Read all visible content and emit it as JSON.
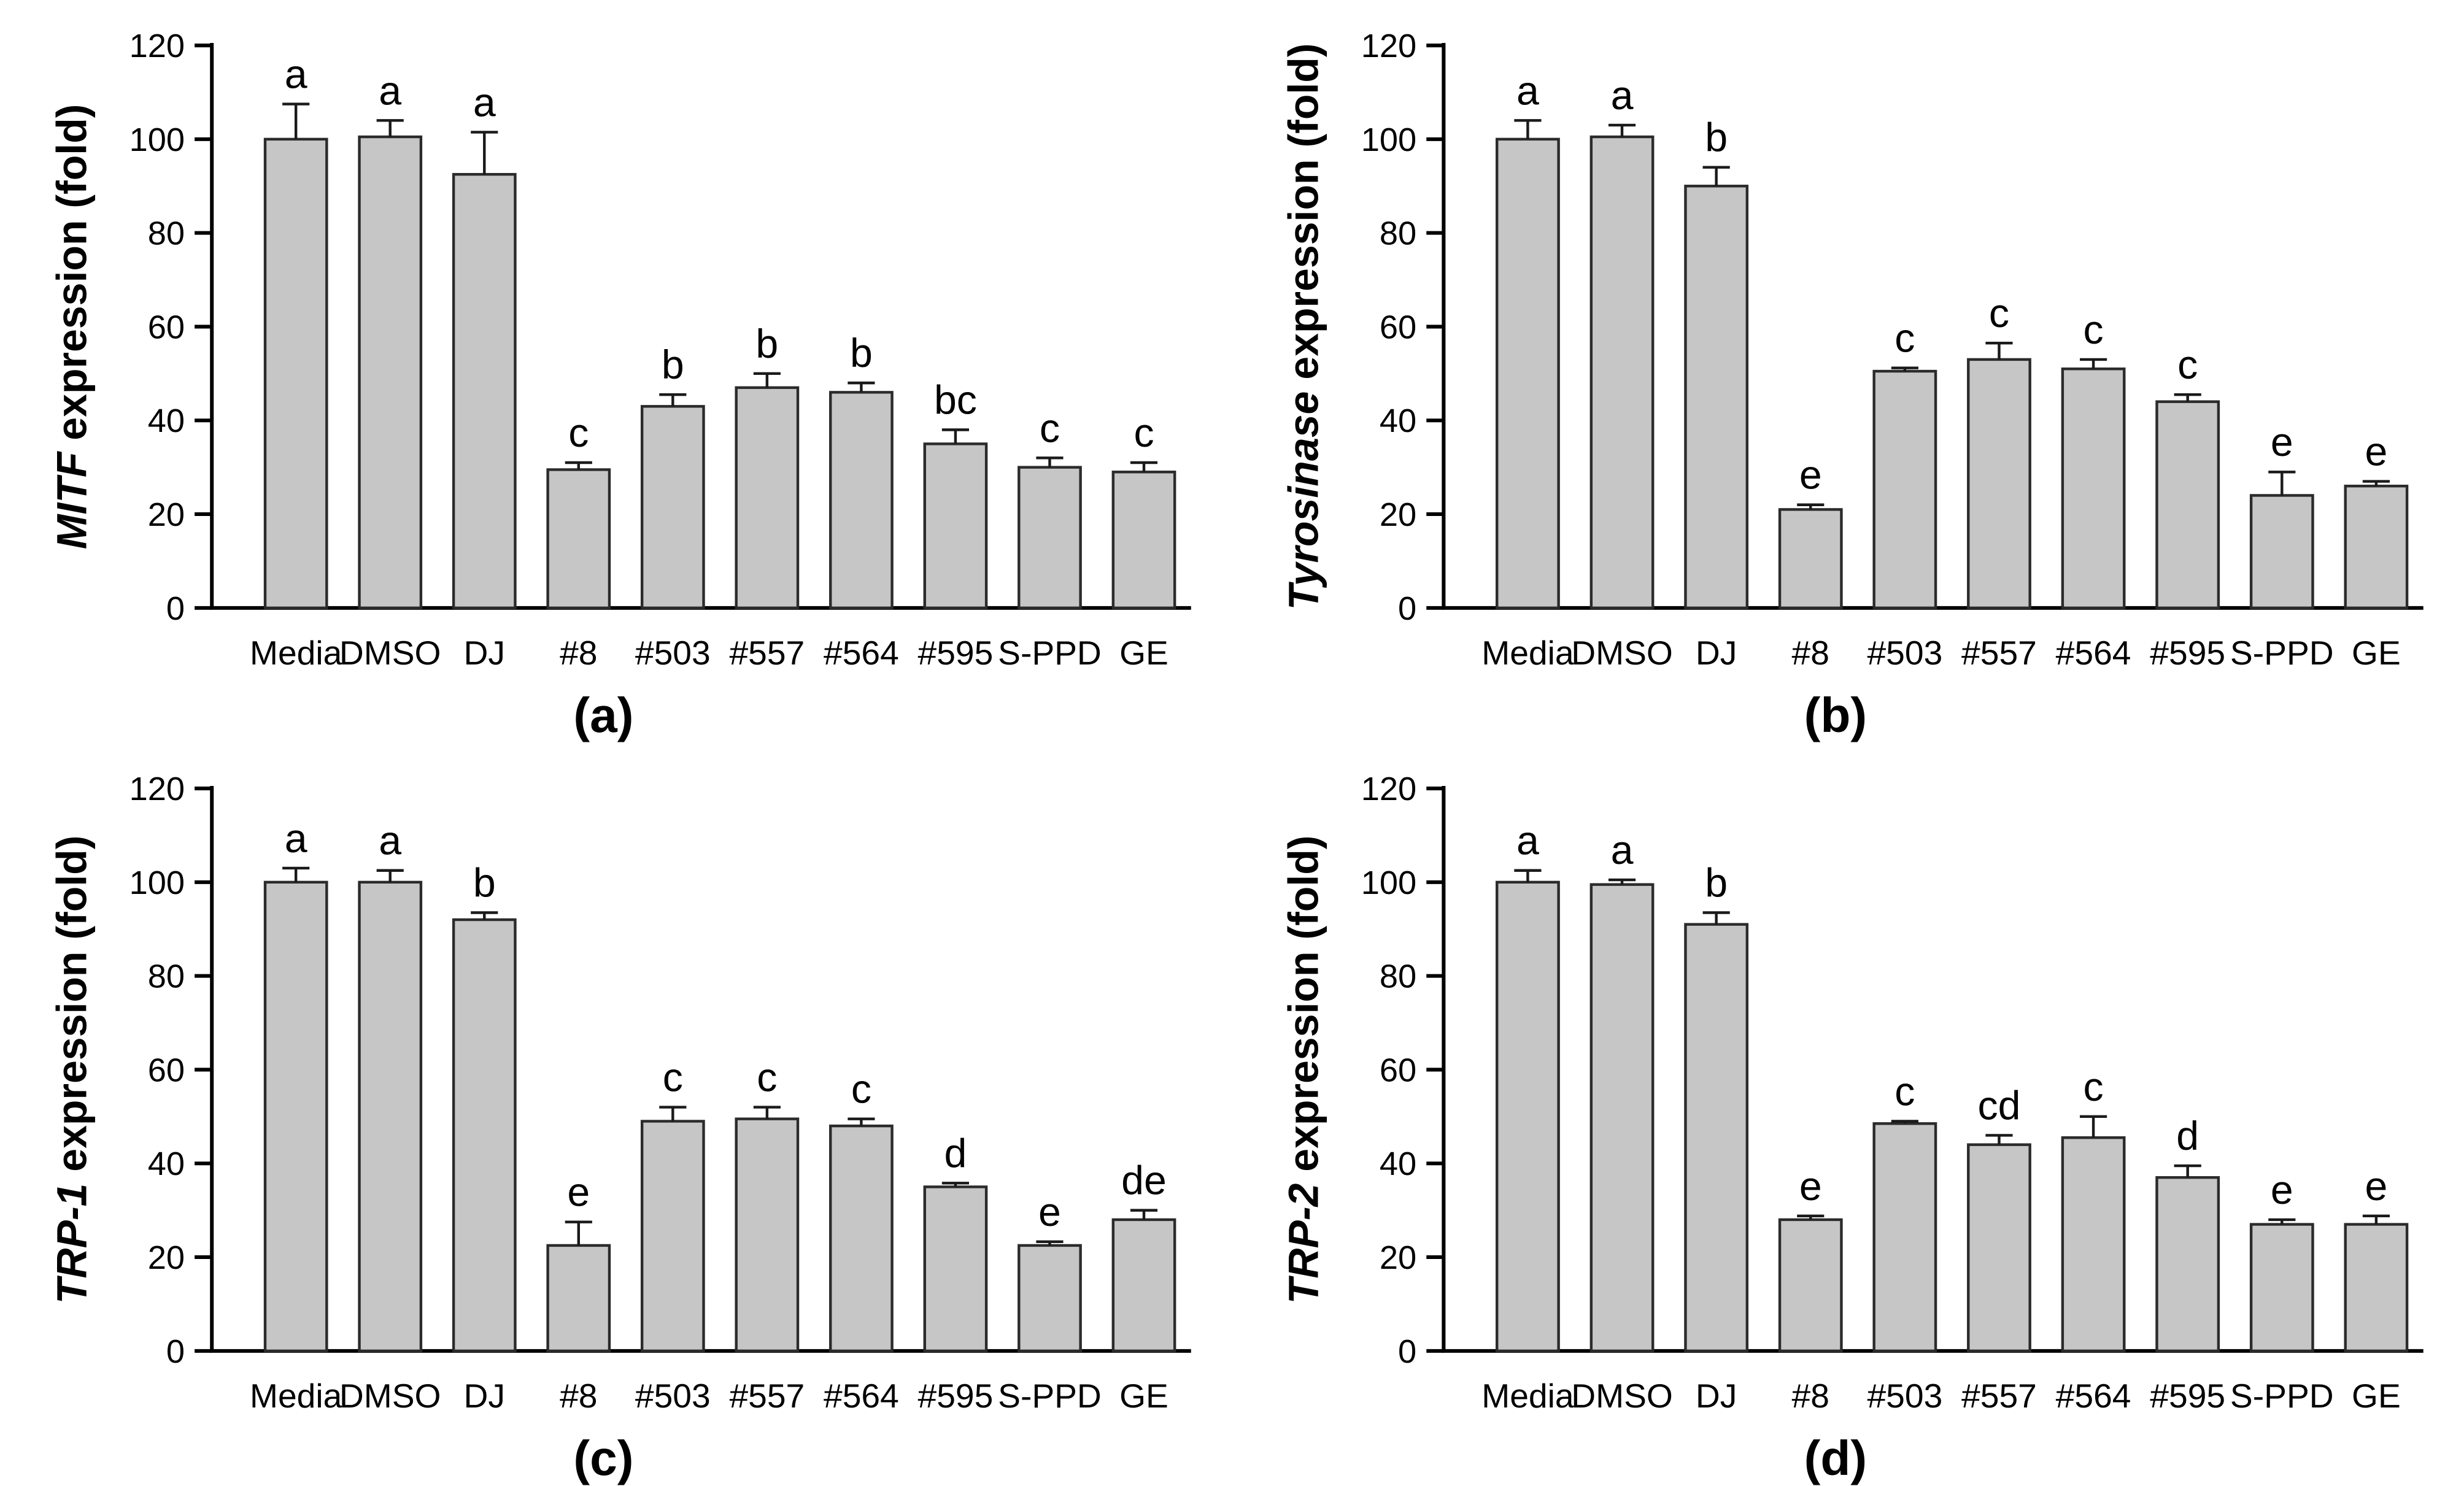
{
  "figure": {
    "background": "#ffffff",
    "panel_labels": [
      "(a)",
      "(b)",
      "(c)",
      "(d)"
    ]
  },
  "colors": {
    "bar_fill": "#c6c6c6",
    "bar_stroke": "#2b2b2b",
    "error_bar": "#1a1a1a",
    "axis": "#000000",
    "text": "#000000"
  },
  "chart_data": [
    {
      "type": "bar",
      "panel_label": "(a)",
      "ylabel_italic": "MITF",
      "ylabel_rest": " expression (fold)",
      "ylabel_full": "MITF expression (fold)",
      "xlabel": "",
      "ylim": [
        0,
        120
      ],
      "yticks": [
        0,
        20,
        40,
        60,
        80,
        100,
        120
      ],
      "grid": false,
      "legend": "none",
      "categories": [
        "Media",
        "DMSO",
        "DJ",
        "#8",
        "#503",
        "#557",
        "#564",
        "#595",
        "S-PPD",
        "GE"
      ],
      "values": [
        100,
        100.5,
        92.5,
        29.5,
        43,
        47,
        46,
        35,
        30,
        29
      ],
      "errors": [
        7.5,
        3.5,
        9,
        1.5,
        2.5,
        3,
        2,
        3,
        2,
        2
      ],
      "sig_letters": [
        "a",
        "a",
        "a",
        "c",
        "b",
        "b",
        "b",
        "bc",
        "c",
        "c"
      ]
    },
    {
      "type": "bar",
      "panel_label": "(b)",
      "ylabel_italic": "Tyrosinase",
      "ylabel_rest": " expression (fold)",
      "ylabel_full": "Tyrosinase expression (fold)",
      "xlabel": "",
      "ylim": [
        0,
        120
      ],
      "yticks": [
        0,
        20,
        40,
        60,
        80,
        100,
        120
      ],
      "grid": false,
      "legend": "none",
      "categories": [
        "Media",
        "DMSO",
        "DJ",
        "#8",
        "#503",
        "#557",
        "#564",
        "#595",
        "S-PPD",
        "GE"
      ],
      "values": [
        100,
        100.5,
        90,
        21,
        50.5,
        53,
        51,
        44,
        24,
        26
      ],
      "errors": [
        4,
        2.5,
        4,
        1,
        0.7,
        3.5,
        2,
        1.5,
        5,
        1
      ],
      "sig_letters": [
        "a",
        "a",
        "b",
        "e",
        "c",
        "c",
        "c",
        "c",
        "e",
        "e"
      ]
    },
    {
      "type": "bar",
      "panel_label": "(c)",
      "ylabel_italic": "TRP-1",
      "ylabel_rest": " expression (fold)",
      "ylabel_full": "TRP-1 expression (fold)",
      "xlabel": "",
      "ylim": [
        0,
        120
      ],
      "yticks": [
        0,
        20,
        40,
        60,
        80,
        100,
        120
      ],
      "grid": false,
      "legend": "none",
      "categories": [
        "Media",
        "DMSO",
        "DJ",
        "#8",
        "#503",
        "#557",
        "#564",
        "#595",
        "S-PPD",
        "GE"
      ],
      "values": [
        100,
        100,
        92,
        22.5,
        49,
        49.5,
        48,
        35,
        22.5,
        28
      ],
      "errors": [
        3,
        2.5,
        1.5,
        5,
        3,
        2.5,
        1.5,
        0.8,
        0.8,
        2
      ],
      "sig_letters": [
        "a",
        "a",
        "b",
        "e",
        "c",
        "c",
        "c",
        "d",
        "e",
        "de"
      ]
    },
    {
      "type": "bar",
      "panel_label": "(d)",
      "ylabel_italic": "TRP-2",
      "ylabel_rest": " expression (fold)",
      "ylabel_full": "TRP-2 expression (fold)",
      "xlabel": "",
      "ylim": [
        0,
        120
      ],
      "yticks": [
        0,
        20,
        40,
        60,
        80,
        100,
        120
      ],
      "grid": false,
      "legend": "none",
      "categories": [
        "Media",
        "DMSO",
        "DJ",
        "#8",
        "#503",
        "#557",
        "#564",
        "#595",
        "S-PPD",
        "GE"
      ],
      "values": [
        100,
        99.5,
        91,
        28,
        48.5,
        44,
        45.5,
        37,
        27,
        27
      ],
      "errors": [
        2.5,
        1,
        2.5,
        0.8,
        0.5,
        2,
        4.5,
        2.5,
        1,
        1.8
      ],
      "sig_letters": [
        "a",
        "a",
        "b",
        "e",
        "c",
        "cd",
        "c",
        "d",
        "e",
        "e"
      ]
    }
  ]
}
